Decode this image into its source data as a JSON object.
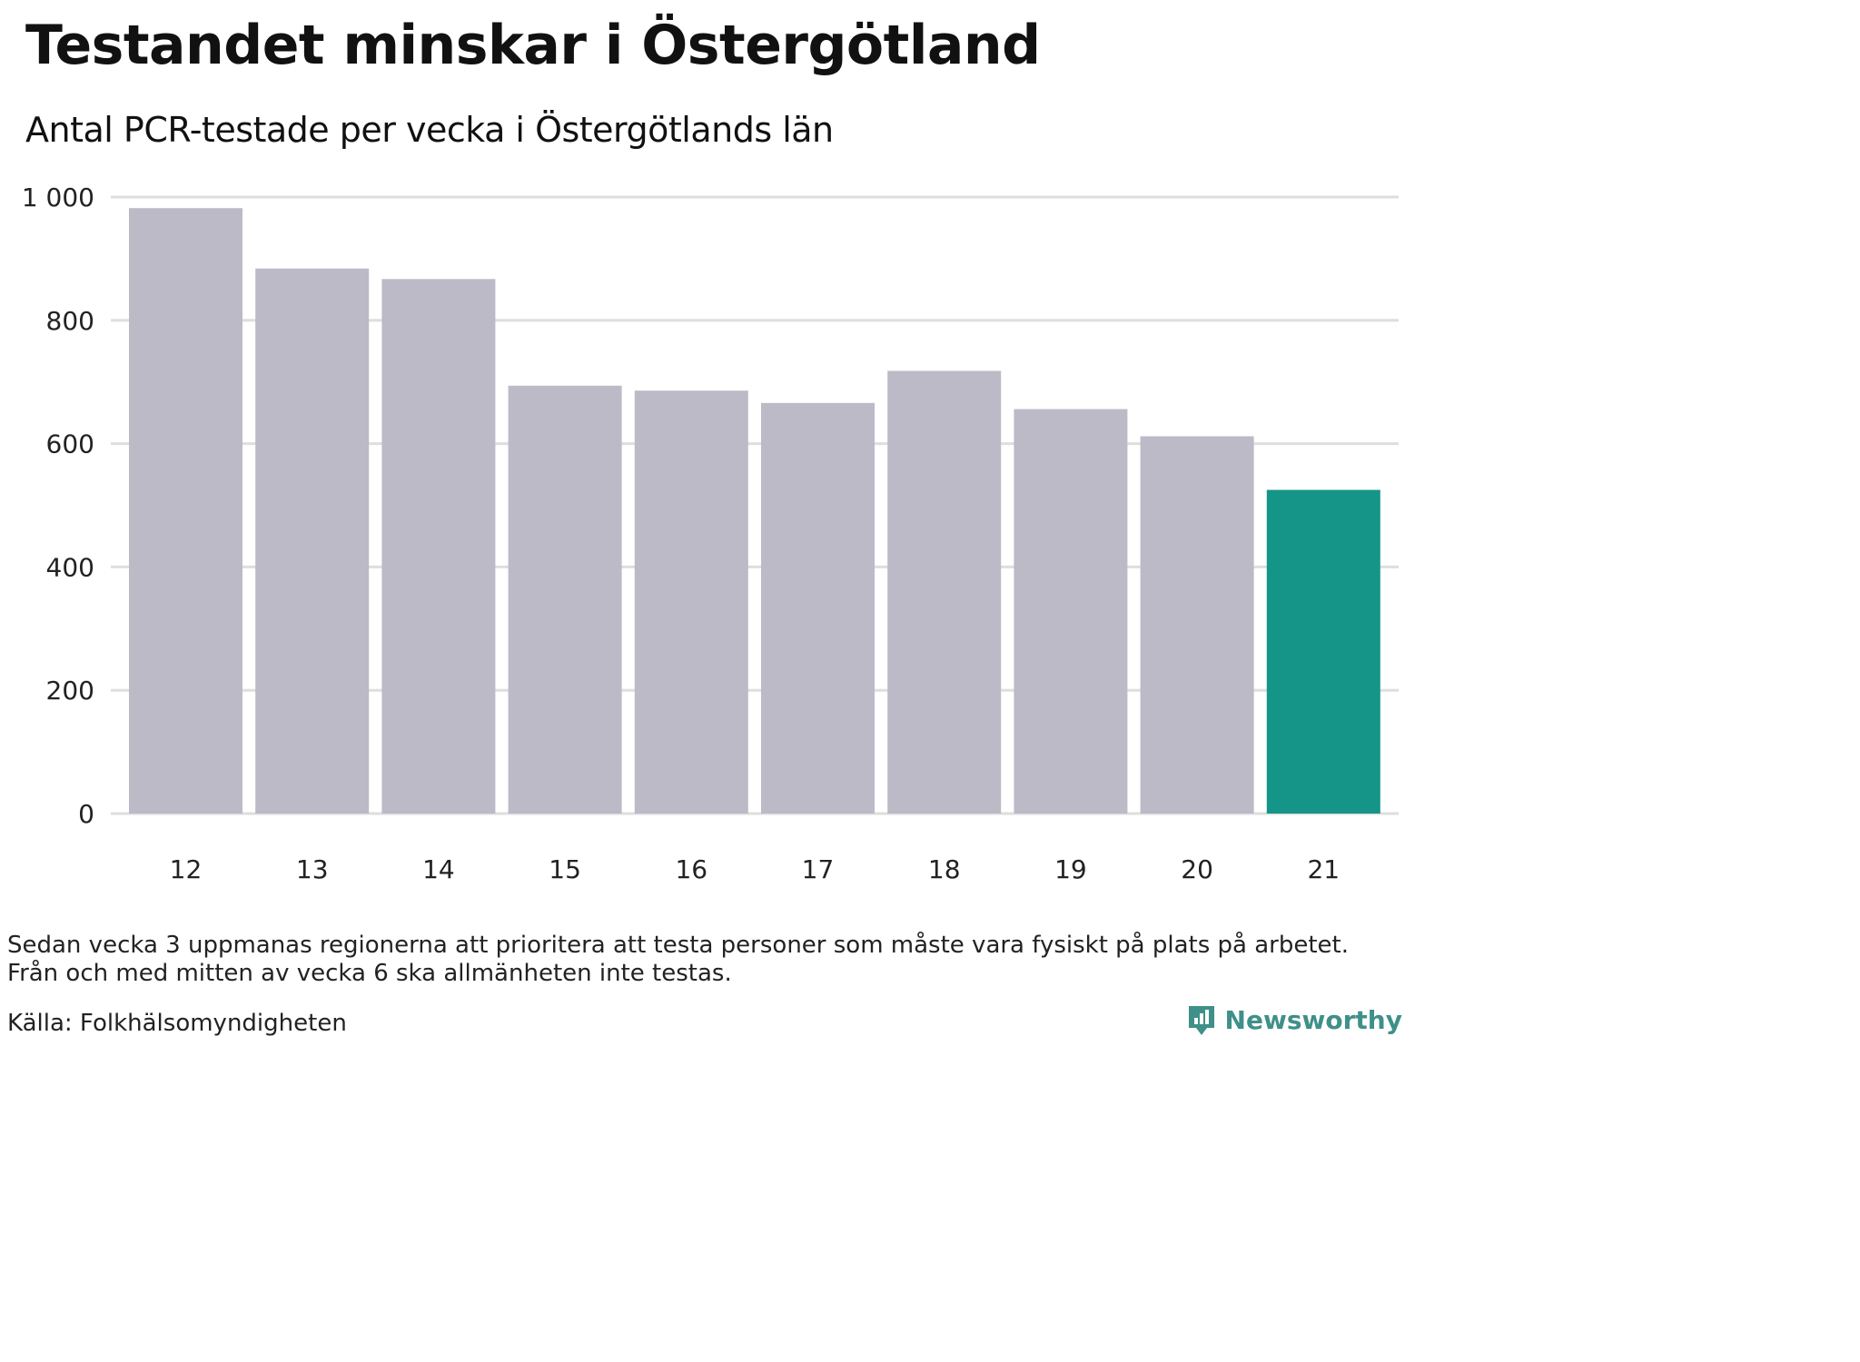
{
  "title": "Testandet minskar i Östergötland",
  "subtitle": "Antal PCR-testade per vecka i Östergötlands län",
  "note_line1": "Sedan vecka 3 uppmanas regionerna att prioritera att testa personer som måste vara fysiskt på plats på arbetet.",
  "note_line2": "Från och med mitten av vecka 6 ska allmänheten inte testas.",
  "source": "Källa: Folkhälsomyndigheten",
  "brand": "Newsworthy",
  "brand_icon": "newsworthy-logo-icon",
  "colors": {
    "bar_default": "#bcbac7",
    "bar_highlight": "#149588",
    "gridline": "#dedede",
    "brand": "#3f9089"
  },
  "chart_data": {
    "type": "bar",
    "title": "Testandet minskar i Östergötland",
    "subtitle": "Antal PCR-testade per vecka i Östergötlands län",
    "xlabel": "",
    "ylabel": "",
    "categories": [
      "12",
      "13",
      "14",
      "15",
      "16",
      "17",
      "18",
      "19",
      "20",
      "21"
    ],
    "values": [
      982,
      884,
      867,
      694,
      686,
      666,
      718,
      656,
      612,
      525
    ],
    "highlight_index": 9,
    "ylim": [
      0,
      1000
    ],
    "yticks": [
      0,
      200,
      400,
      600,
      800,
      1000
    ],
    "ytick_labels": [
      "0",
      "200",
      "400",
      "600",
      "800",
      "1 000"
    ],
    "grid": true,
    "legend": "none"
  }
}
